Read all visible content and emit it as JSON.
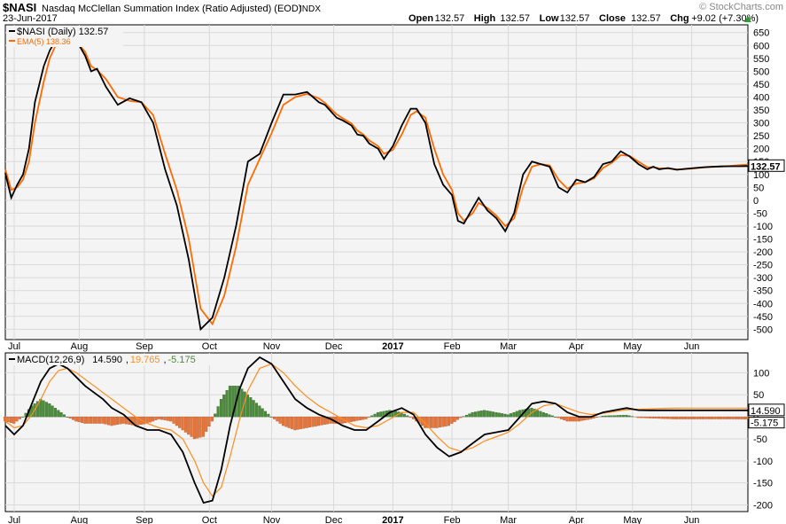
{
  "header": {
    "symbol": "$NASI",
    "name": "Nasdaq McClellan Summation Index (Ratio Adjusted) (EOD)",
    "exchange": "INDX",
    "watermark": "© StockCharts.com",
    "date": "23-Jun-2017",
    "open_label": "Open",
    "open": "132.57",
    "high_label": "High",
    "high": "132.57",
    "low_label": "Low",
    "low": "132.57",
    "close_label": "Close",
    "close": "132.57",
    "chg_label": "Chg",
    "chg": "+9.02 (+7.30%)",
    "up_arrow_icon": "up-triangle-icon"
  },
  "colors": {
    "price": "#000000",
    "ema": "#ff6a00",
    "macd": "#000000",
    "signal": "#ff8c1a",
    "hist_pos": "#4a8c3a",
    "hist_neg": "#e8763a",
    "panel_bg": "#f4f4f4",
    "grid": "#d9d9d9",
    "up": "#2aa02a"
  },
  "chart_data": [
    {
      "type": "line",
      "panel": "price",
      "legend": [
        {
          "label": "$NASI (Daily) 132.57",
          "color": "#000000"
        },
        {
          "label": "EMA(5) 138.36",
          "color": "#ff6a00"
        }
      ],
      "last_value_badge": "132.57",
      "ylim": [
        -540,
        680
      ],
      "yticks": [
        650,
        600,
        550,
        500,
        450,
        400,
        350,
        300,
        250,
        200,
        150,
        100,
        50,
        0,
        -50,
        -100,
        -150,
        -200,
        -250,
        -300,
        -350,
        -400,
        -450,
        -500
      ],
      "ytick_labels": [
        "650",
        "600",
        "550",
        "500",
        "450",
        "400",
        "350",
        "300",
        "250",
        "200",
        "150",
        "100",
        "50",
        "0",
        "-50",
        "-100",
        "-150",
        "-200",
        "-250",
        "-300",
        "-350",
        "-400",
        "-450",
        "-500"
      ],
      "series": [
        {
          "name": "$NASI (Daily)",
          "color": "#000000",
          "x": [
            0,
            2,
            4,
            6,
            8,
            10,
            13,
            15,
            17,
            19,
            22,
            25,
            27,
            29,
            31,
            34,
            38,
            42,
            46,
            50,
            54,
            58,
            62,
            66,
            70,
            74,
            78,
            82,
            86,
            90,
            94,
            98,
            102,
            106,
            108,
            110,
            112,
            114,
            117,
            119,
            121,
            123,
            126,
            128,
            131,
            134,
            137,
            139,
            142,
            145,
            148,
            151,
            153,
            155,
            158,
            160,
            163,
            166,
            169,
            172,
            175,
            178,
            181,
            184,
            187,
            190,
            193,
            196,
            199,
            202,
            205,
            208,
            211,
            214,
            217,
            219,
            221,
            224,
            227,
            230,
            233,
            236,
            239,
            242,
            245,
            248,
            251
          ],
          "values": [
            105,
            10,
            60,
            100,
            200,
            380,
            520,
            580,
            620,
            620,
            610,
            600,
            560,
            500,
            510,
            440,
            370,
            395,
            380,
            300,
            120,
            -20,
            -230,
            -500,
            -455,
            -300,
            -100,
            150,
            180,
            300,
            410,
            410,
            420,
            380,
            370,
            345,
            320,
            310,
            290,
            255,
            250,
            220,
            200,
            160,
            210,
            290,
            355,
            355,
            300,
            140,
            60,
            20,
            -80,
            -90,
            -30,
            10,
            -40,
            -70,
            -120,
            -50,
            100,
            150,
            140,
            130,
            50,
            30,
            80,
            70,
            90,
            140,
            150,
            190,
            170,
            140,
            120,
            130,
            120,
            125,
            118,
            122,
            125,
            128,
            130,
            131,
            132,
            132,
            132.57
          ]
        },
        {
          "name": "EMA(5)",
          "color": "#ff6a00",
          "x": [
            0,
            2,
            4,
            6,
            8,
            10,
            13,
            15,
            17,
            19,
            22,
            25,
            27,
            29,
            31,
            34,
            38,
            42,
            46,
            50,
            54,
            58,
            62,
            66,
            70,
            74,
            78,
            82,
            86,
            90,
            94,
            98,
            102,
            106,
            108,
            110,
            112,
            114,
            117,
            119,
            121,
            123,
            126,
            128,
            131,
            134,
            137,
            139,
            142,
            145,
            148,
            151,
            153,
            155,
            158,
            160,
            163,
            166,
            169,
            172,
            175,
            178,
            181,
            184,
            187,
            190,
            193,
            196,
            199,
            202,
            205,
            208,
            211,
            214,
            217,
            219,
            221,
            224,
            227,
            230,
            233,
            236,
            239,
            242,
            245,
            248,
            251
          ],
          "values": [
            120,
            40,
            50,
            80,
            150,
            300,
            460,
            550,
            600,
            615,
            612,
            602,
            575,
            520,
            505,
            470,
            400,
            385,
            380,
            330,
            180,
            40,
            -150,
            -420,
            -480,
            -370,
            -180,
            60,
            160,
            260,
            370,
            400,
            412,
            395,
            378,
            355,
            333,
            318,
            298,
            270,
            255,
            232,
            210,
            180,
            195,
            255,
            330,
            345,
            320,
            200,
            100,
            40,
            -50,
            -80,
            -50,
            -10,
            -30,
            -60,
            -100,
            -70,
            50,
            130,
            140,
            135,
            80,
            45,
            65,
            70,
            85,
            125,
            145,
            175,
            172,
            150,
            128,
            128,
            124,
            123,
            120,
            121,
            124,
            127,
            129,
            131,
            133,
            136,
            138.36
          ]
        }
      ]
    },
    {
      "type": "line",
      "panel": "macd",
      "legend": [
        {
          "label": "MACD(12,26,9)",
          "color": "#000000"
        },
        {
          "label": "14.590",
          "color": "#000000"
        },
        {
          "label": "19.765",
          "color": "#ff8c1a"
        },
        {
          "label": "-5.175",
          "color": "#4a8c3a"
        }
      ],
      "badges": [
        "14.590",
        "-5.175"
      ],
      "ylim": [
        -215,
        145
      ],
      "yticks": [
        100,
        50,
        0,
        -50,
        -100,
        -150,
        -200
      ],
      "ytick_labels": [
        "100",
        "50",
        "0",
        "-50",
        "-100",
        "-150",
        "-200"
      ],
      "series": [
        {
          "name": "MACD",
          "color": "#000000",
          "x": [
            0,
            3,
            6,
            9,
            12,
            15,
            18,
            21,
            24,
            27,
            30,
            33,
            36,
            40,
            44,
            48,
            52,
            56,
            60,
            64,
            67,
            70,
            73,
            76,
            79,
            82,
            86,
            90,
            94,
            98,
            102,
            106,
            110,
            114,
            118,
            122,
            126,
            130,
            134,
            138,
            142,
            146,
            150,
            154,
            158,
            162,
            166,
            170,
            174,
            178,
            182,
            186,
            190,
            194,
            198,
            202,
            206,
            210,
            214,
            218,
            222,
            226,
            230,
            234,
            238,
            242,
            246,
            250,
            251
          ],
          "values": [
            -20,
            -40,
            -20,
            30,
            80,
            110,
            120,
            110,
            90,
            70,
            55,
            40,
            20,
            5,
            -20,
            -30,
            -30,
            -40,
            -80,
            -150,
            -195,
            -190,
            -120,
            -20,
            60,
            110,
            135,
            120,
            80,
            40,
            20,
            5,
            -5,
            -20,
            -30,
            -30,
            -10,
            10,
            20,
            5,
            -40,
            -70,
            -90,
            -80,
            -60,
            -40,
            -35,
            -30,
            0,
            30,
            35,
            30,
            10,
            0,
            0,
            10,
            15,
            20,
            15,
            14.59,
            14.59,
            14.59,
            14.59,
            14.59,
            14.59,
            14.59,
            14.59,
            14.59,
            14.59
          ]
        },
        {
          "name": "Signal",
          "color": "#ff8c1a",
          "x": [
            0,
            3,
            6,
            9,
            12,
            15,
            18,
            21,
            24,
            27,
            30,
            33,
            36,
            40,
            44,
            48,
            52,
            56,
            60,
            64,
            67,
            70,
            73,
            76,
            79,
            82,
            86,
            90,
            94,
            98,
            102,
            106,
            110,
            114,
            118,
            122,
            126,
            130,
            134,
            138,
            142,
            146,
            150,
            154,
            158,
            162,
            166,
            170,
            174,
            178,
            182,
            186,
            190,
            194,
            198,
            202,
            206,
            210,
            214,
            218,
            222,
            226,
            230,
            234,
            238,
            242,
            246,
            250,
            251
          ],
          "values": [
            -10,
            -25,
            -20,
            5,
            40,
            80,
            105,
            110,
            100,
            85,
            70,
            55,
            40,
            20,
            0,
            -15,
            -25,
            -30,
            -50,
            -100,
            -150,
            -180,
            -160,
            -90,
            -10,
            60,
            110,
            120,
            100,
            70,
            45,
            25,
            10,
            -5,
            -20,
            -25,
            -20,
            -5,
            10,
            10,
            -15,
            -45,
            -70,
            -78,
            -70,
            -55,
            -45,
            -35,
            -15,
            10,
            25,
            30,
            20,
            10,
            5,
            8,
            12,
            16,
            17,
            18,
            19,
            19.5,
            19.7,
            19.765,
            19.765,
            19.765,
            19.765,
            19.765,
            19.765
          ]
        }
      ],
      "histogram": {
        "x": [
          0,
          3,
          6,
          9,
          12,
          15,
          18,
          21,
          24,
          27,
          30,
          33,
          36,
          40,
          44,
          48,
          52,
          56,
          60,
          64,
          67,
          70,
          73,
          76,
          79,
          82,
          86,
          90,
          94,
          98,
          102,
          106,
          110,
          114,
          118,
          122,
          126,
          130,
          134,
          138,
          142,
          146,
          150,
          154,
          158,
          162,
          166,
          170,
          174,
          178,
          182,
          186,
          190,
          194,
          198,
          202,
          206,
          210,
          214,
          218,
          222,
          226,
          230,
          234,
          238,
          242,
          246,
          250,
          251
        ],
        "values": [
          -10,
          -15,
          0,
          25,
          40,
          30,
          15,
          0,
          -10,
          -15,
          -15,
          -15,
          -20,
          -15,
          -20,
          -15,
          -5,
          -10,
          -30,
          -50,
          -45,
          -10,
          40,
          70,
          70,
          50,
          25,
          0,
          -20,
          -30,
          -25,
          -20,
          -15,
          -15,
          -10,
          -5,
          10,
          15,
          10,
          -5,
          -25,
          -25,
          -20,
          -2,
          10,
          15,
          10,
          5,
          15,
          20,
          10,
          0,
          -10,
          -10,
          -5,
          2,
          3,
          4,
          -2,
          -3,
          -4,
          -5,
          -5,
          -5,
          -5,
          -5,
          -5,
          -5.175,
          -5.175
        ]
      }
    }
  ],
  "x_axis": {
    "labels": [
      "Jul",
      "Aug",
      "Sep",
      "Oct",
      "Nov",
      "Dec",
      "2017",
      "Feb",
      "Mar",
      "Apr",
      "May",
      "Jun"
    ],
    "positions": [
      3,
      25,
      47,
      69,
      90,
      111,
      131,
      151,
      170,
      193,
      212,
      232
    ],
    "bold": [
      "2017"
    ],
    "n": 252
  }
}
